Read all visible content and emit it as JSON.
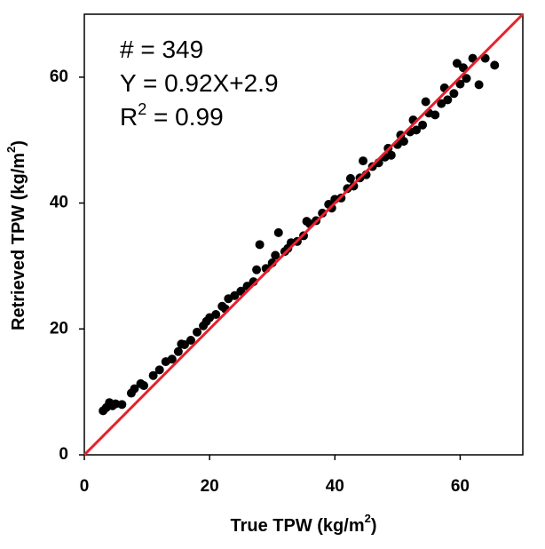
{
  "chart_data": {
    "type": "scatter",
    "x_label": [
      "True TPW (kg/m",
      "2",
      ")"
    ],
    "y_label": [
      "Retrieved TPW (kg/m",
      "2",
      ")"
    ],
    "annotations": [
      [
        "# = 349"
      ],
      [
        "Y = 0.92X+2.9"
      ],
      [
        "R",
        "2",
        " = 0.99"
      ]
    ],
    "xlim": [
      0,
      70
    ],
    "ylim": [
      0,
      70
    ],
    "xticks": [
      0,
      20,
      40,
      60
    ],
    "yticks": [
      0,
      20,
      40,
      60
    ],
    "color": "#000000",
    "reference_line": {
      "color": "#e8202a",
      "x": [
        0,
        70
      ],
      "y": [
        0,
        70
      ]
    },
    "x": [
      3,
      3.5,
      4,
      4.5,
      5,
      6,
      7.5,
      8,
      9,
      9.5,
      11,
      12,
      13,
      14,
      15,
      15.5,
      16,
      17,
      18,
      19,
      19.5,
      20,
      21,
      22,
      22.5,
      23,
      24,
      25,
      26,
      27,
      27.5,
      28,
      29,
      30,
      30.5,
      31,
      32,
      32.5,
      33,
      34,
      35,
      35.5,
      36,
      37,
      38,
      39,
      39.5,
      40,
      41,
      42,
      42.5,
      43,
      44,
      44.5,
      45,
      46,
      47,
      48,
      48.5,
      49,
      50,
      50.5,
      51,
      52,
      52.5,
      53,
      54,
      54.5,
      55,
      56,
      57,
      57.5,
      58,
      59,
      59.5,
      60,
      60.5,
      61,
      62,
      63,
      64,
      65.5
    ],
    "values": [
      7.0,
      7.5,
      8.3,
      7.8,
      8.1,
      8.0,
      9.8,
      10.5,
      11.3,
      11.0,
      12.6,
      13.5,
      14.8,
      15.2,
      16.4,
      17.6,
      17.5,
      18.2,
      19.5,
      20.5,
      21.2,
      21.8,
      22.3,
      23.6,
      23.2,
      24.8,
      25.3,
      26.0,
      26.8,
      27.5,
      29.4,
      33.4,
      29.6,
      30.5,
      31.7,
      35.3,
      32.3,
      32.8,
      33.7,
      33.9,
      34.8,
      37.1,
      36.7,
      37.2,
      38.4,
      39.8,
      39.2,
      40.6,
      40.8,
      42.3,
      43.9,
      42.7,
      44.0,
      46.7,
      44.5,
      45.8,
      46.4,
      47.3,
      48.7,
      47.6,
      49.3,
      50.8,
      49.8,
      51.3,
      53.2,
      51.6,
      52.4,
      56.1,
      54.3,
      54.0,
      55.8,
      58.3,
      56.4,
      57.4,
      62.2,
      58.9,
      61.5,
      59.8,
      63.0,
      58.8,
      63.0,
      61.9
    ]
  }
}
